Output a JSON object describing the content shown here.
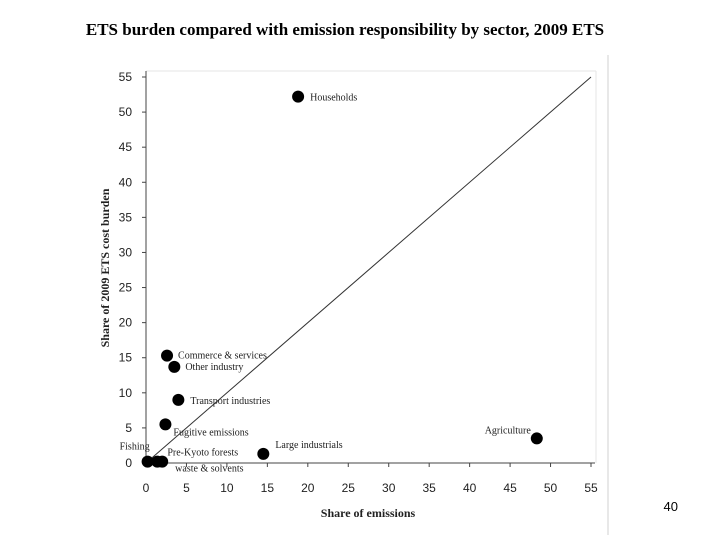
{
  "slide": {
    "title": "ETS burden compared with emission responsibility by sector, 2009 ETS",
    "page_number": "40"
  },
  "chart_data": {
    "type": "scatter",
    "title": "",
    "xlabel": "Share of emissions",
    "ylabel": "Share of 2009 ETS cost burden",
    "xlim": [
      0,
      55
    ],
    "ylim": [
      0,
      55
    ],
    "xticks": [
      "0",
      "5",
      "10",
      "15",
      "20",
      "25",
      "30",
      "35",
      "40",
      "45",
      "50",
      "55"
    ],
    "yticks": [
      "0",
      "5",
      "10",
      "15",
      "20",
      "25",
      "30",
      "35",
      "40",
      "45",
      "50",
      "55"
    ],
    "grid": false,
    "reference_line": "y = x",
    "points": [
      {
        "label": "Households",
        "x": 18.8,
        "y": 52.2
      },
      {
        "label": "Commerce & services",
        "x": 2.6,
        "y": 15.3
      },
      {
        "label": "Other industry",
        "x": 3.5,
        "y": 13.7
      },
      {
        "label": "Transport industries",
        "x": 4.0,
        "y": 9.0
      },
      {
        "label": "Fugitive emissions",
        "x": 2.4,
        "y": 5.5
      },
      {
        "label": "Agriculture",
        "x": 48.3,
        "y": 3.5
      },
      {
        "label": "Large industrials",
        "x": 14.5,
        "y": 1.3
      },
      {
        "label": "Fishing",
        "x": 0.2,
        "y": 0.2
      },
      {
        "label": "Pre-Kyoto forests",
        "x": 1.4,
        "y": 0.2
      },
      {
        "label": "waste & solvents",
        "x": 2.0,
        "y": 0.2
      }
    ]
  }
}
